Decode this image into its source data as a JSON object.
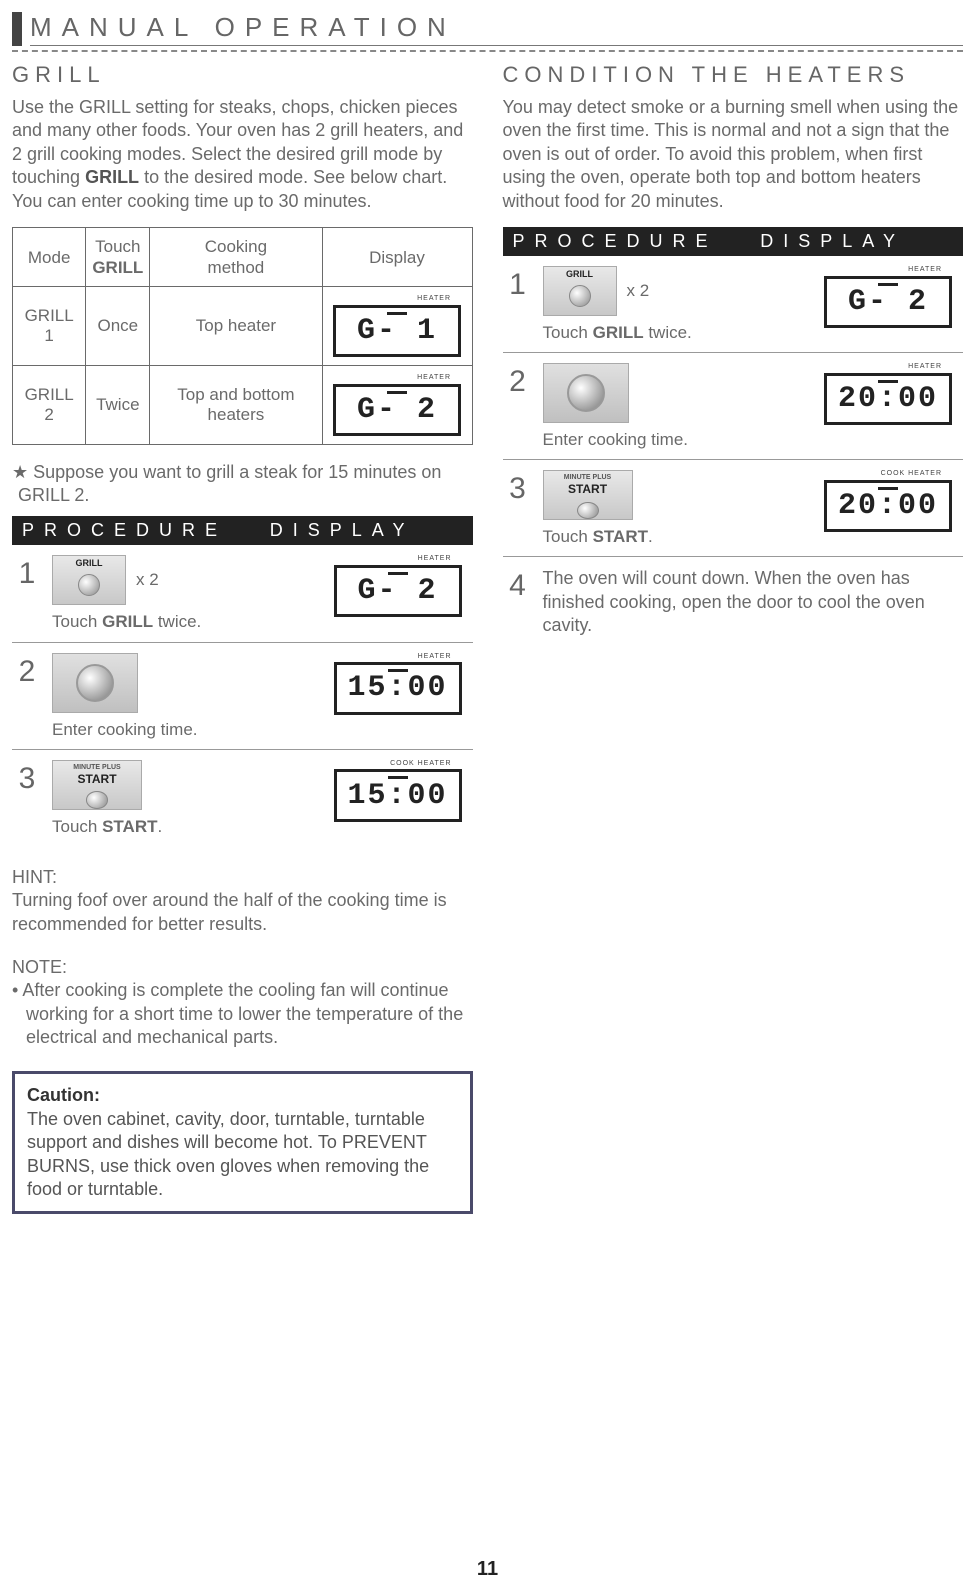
{
  "page": {
    "title": "MANUAL OPERATION",
    "number": "11"
  },
  "left": {
    "heading": "GRILL",
    "intro_a": "Use the GRILL setting for steaks, chops, chicken pieces and many other foods. Your oven has 2 grill heaters, and 2 grill cooking modes. Select the desired grill mode by touching ",
    "intro_bold": "GRILL",
    "intro_b": " to the desired mode. See below chart. You can enter cooking time up to 30 minutes.",
    "table": {
      "columns": [
        "Mode",
        "Touch\nGRILL",
        "Cooking\nmethod",
        "Display"
      ],
      "rows": [
        {
          "mode": "GRILL 1",
          "touch": "Once",
          "method": "Top heater",
          "lcd_top": "HEATER",
          "lcd": "G- 1"
        },
        {
          "mode": "GRILL 2",
          "touch": "Twice",
          "method": "Top and bottom heaters",
          "lcd_top": "HEATER",
          "lcd": "G- 2"
        }
      ],
      "col_widths": [
        "20%",
        "18%",
        "30%",
        "32%"
      ],
      "border_color": "#6a6a6a",
      "font_size": 17
    },
    "suppose": "★ Suppose you want to grill a steak for 15 minutes on GRILL 2.",
    "proc_header": {
      "left": "PROCEDURE",
      "right": "DISPLAY"
    },
    "steps": [
      {
        "n": "1",
        "icon_type": "grill",
        "icon_label": "GRILL",
        "x2": "x 2",
        "text_a": "Touch ",
        "text_bold": "GRILL",
        "text_b": " twice.",
        "lcd_top": "HEATER",
        "lcd": "G- 2"
      },
      {
        "n": "2",
        "icon_type": "knob",
        "text_a": "Enter cooking time.",
        "lcd_top": "HEATER",
        "lcd": "15:00"
      },
      {
        "n": "3",
        "icon_type": "start",
        "icon_label": "START",
        "icon_sub": "MINUTE PLUS",
        "text_a": "Touch ",
        "text_bold": "START",
        "text_b": ".",
        "lcd_top": "COOK  HEATER",
        "lcd": "15:00",
        "noborder": true
      }
    ],
    "hint_label": "HINT:",
    "hint": "Turning foof over around the half of the cooking time is recommended for better results.",
    "note_label": "NOTE:",
    "note_items": [
      "After cooking is complete the cooling fan will continue working for a short time to lower the temperature of the electrical and mechanical parts."
    ],
    "caution_label": "Caution:",
    "caution": "The oven cabinet, cavity, door, turntable, turntable support and dishes will become hot. To PREVENT BURNS, use thick oven gloves when removing the food or turntable."
  },
  "right": {
    "heading": "CONDITION THE HEATERS",
    "intro": "You may detect smoke or a burning smell when using the oven the first time. This is normal and not a sign that the oven is out of order. To avoid this problem, when first using the oven, operate both top and bottom heaters without food for 20 minutes.",
    "proc_header": {
      "left": "PROCEDURE",
      "right": "DISPLAY"
    },
    "steps": [
      {
        "n": "1",
        "icon_type": "grill",
        "icon_label": "GRILL",
        "x2": "x 2",
        "text_a": "Touch ",
        "text_bold": "GRILL",
        "text_b": " twice.",
        "lcd_top": "HEATER",
        "lcd": "G- 2"
      },
      {
        "n": "2",
        "icon_type": "knob",
        "text_a": "Enter cooking time.",
        "lcd_top": "HEATER",
        "lcd": "20:00"
      },
      {
        "n": "3",
        "icon_type": "start",
        "icon_label": "START",
        "icon_sub": "MINUTE PLUS",
        "text_a": "Touch ",
        "text_bold": "START",
        "text_b": ".",
        "lcd_top": "COOK  HEATER",
        "lcd": "20:00"
      },
      {
        "n": "4",
        "text_full": "The oven will count down. When the oven has finished cooking, open the door to cool the oven cavity.",
        "noborder": true
      }
    ]
  },
  "style": {
    "text_color": "#6a6a6a",
    "heading_color": "#666",
    "header_bg": "#222",
    "caution_border": "#4a4a6a",
    "lcd_border": "#222",
    "body_font_size": 18
  }
}
